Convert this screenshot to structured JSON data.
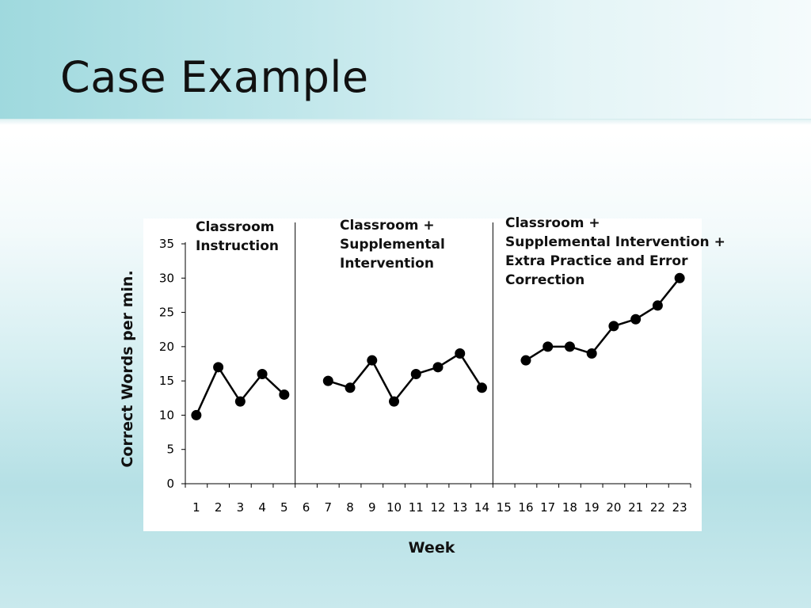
{
  "slide": {
    "title": "Case Example"
  },
  "chart_data": {
    "type": "line",
    "title": "",
    "xlabel": "Week",
    "ylabel": "Correct Words per min.",
    "x": [
      1,
      2,
      3,
      4,
      5,
      6,
      7,
      8,
      9,
      10,
      11,
      12,
      13,
      14,
      15,
      16,
      17,
      18,
      19,
      20,
      21,
      22,
      23
    ],
    "ylim": [
      0,
      35
    ],
    "yticks": [
      0,
      5,
      10,
      15,
      20,
      25,
      30,
      35
    ],
    "grid": false,
    "legend": "none",
    "phase_change_after_weeks": [
      5.5,
      14.5
    ],
    "phases": [
      {
        "label_lines": [
          "Classroom",
          "Instruction"
        ],
        "weeks": [
          1,
          5
        ]
      },
      {
        "label_lines": [
          "Classroom +",
          "Supplemental",
          "Intervention"
        ],
        "weeks": [
          7,
          14
        ]
      },
      {
        "label_lines": [
          "Classroom +",
          "Supplemental Intervention +",
          "Extra Practice and Error",
          "Correction"
        ],
        "weeks": [
          16,
          23
        ]
      }
    ],
    "series": [
      {
        "x": [
          1,
          2,
          3,
          4,
          5
        ],
        "values": [
          10,
          17,
          12,
          16,
          13
        ]
      },
      {
        "x": [
          7,
          8,
          9,
          10,
          11,
          12,
          13,
          14
        ],
        "values": [
          15,
          14,
          18,
          12,
          16,
          17,
          19,
          14
        ]
      },
      {
        "x": [
          16,
          17,
          18,
          19,
          20,
          21,
          22,
          23
        ],
        "values": [
          18,
          20,
          20,
          19,
          23,
          24,
          26,
          30
        ]
      }
    ],
    "colors": {
      "line": "#000000",
      "marker": "#000000"
    }
  }
}
